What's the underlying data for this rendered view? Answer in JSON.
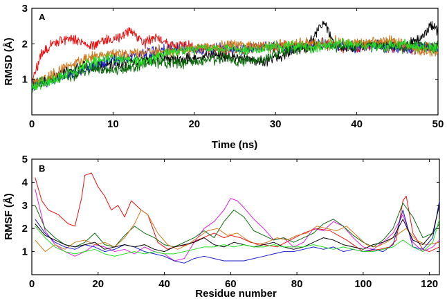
{
  "colors": {
    "red": "#ee1111",
    "black": "#000000",
    "blue": "#1a1acc",
    "dark_green": "#0a6a0a",
    "orange": "#d07a20",
    "green": "#22dd22",
    "magenta": "#e020e0",
    "dark_orange": "#d04a10"
  },
  "chart_data": [
    {
      "type": "line",
      "panel_label": "A",
      "xlabel": "Time (ns)",
      "ylabel": "RMSD (Å)",
      "xlim": [
        0,
        50
      ],
      "ylim": [
        0,
        3
      ],
      "xticks": [
        0,
        10,
        20,
        30,
        40,
        50
      ],
      "yticks": [
        1,
        2,
        3
      ],
      "series": [
        {
          "name": "red",
          "color": "#ee1111",
          "x": [
            0,
            1,
            2,
            3,
            4,
            5,
            6,
            7,
            8,
            9,
            10,
            11,
            12,
            13,
            14,
            15,
            16,
            17,
            18,
            19,
            20,
            22,
            24,
            26,
            28,
            30,
            32,
            34,
            36,
            38,
            40,
            42,
            44,
            46,
            48,
            50
          ],
          "values": [
            0.9,
            1.6,
            1.9,
            2.05,
            2.1,
            2.15,
            2.05,
            1.95,
            2.0,
            2.1,
            2.1,
            2.2,
            2.4,
            2.2,
            2.0,
            2.2,
            2.1,
            2.0,
            1.9,
            1.95,
            1.9,
            1.85,
            1.8,
            1.85,
            1.9,
            1.9,
            1.95,
            1.9,
            2.0,
            1.9,
            1.9,
            1.95,
            1.9,
            1.9,
            1.85,
            1.9
          ]
        },
        {
          "name": "black",
          "color": "#000000",
          "x": [
            0,
            2,
            4,
            6,
            8,
            10,
            12,
            14,
            16,
            18,
            20,
            22,
            24,
            26,
            28,
            30,
            32,
            34,
            35,
            36,
            37,
            38,
            40,
            42,
            44,
            46,
            48,
            49,
            50
          ],
          "values": [
            0.85,
            1.0,
            1.2,
            1.35,
            1.4,
            1.45,
            1.5,
            1.55,
            1.6,
            1.55,
            1.6,
            1.7,
            1.65,
            1.6,
            1.5,
            1.6,
            1.8,
            1.9,
            2.3,
            2.6,
            2.1,
            1.9,
            1.95,
            2.0,
            2.0,
            1.95,
            2.2,
            2.5,
            2.4
          ]
        },
        {
          "name": "blue",
          "color": "#1a1acc",
          "x": [
            0,
            2,
            4,
            6,
            8,
            10,
            12,
            14,
            16,
            18,
            20,
            22,
            24,
            26,
            28,
            30,
            32,
            34,
            36,
            38,
            40,
            42,
            44,
            46,
            48,
            50
          ],
          "values": [
            0.85,
            0.95,
            1.1,
            1.25,
            1.4,
            1.55,
            1.65,
            1.75,
            1.8,
            1.85,
            1.8,
            1.85,
            1.9,
            1.85,
            1.9,
            1.95,
            1.9,
            1.95,
            2.0,
            1.95,
            1.9,
            1.95,
            1.9,
            1.85,
            1.9,
            1.85
          ]
        },
        {
          "name": "dark_green",
          "color": "#0a6a0a",
          "x": [
            0,
            2,
            4,
            6,
            8,
            10,
            12,
            14,
            16,
            18,
            20,
            22,
            24,
            26,
            28,
            30,
            32,
            34,
            36,
            38,
            40,
            42,
            44,
            46,
            48,
            50
          ],
          "values": [
            0.75,
            1.0,
            1.05,
            1.2,
            1.3,
            1.25,
            1.35,
            1.45,
            1.5,
            1.45,
            1.5,
            1.55,
            1.6,
            1.5,
            1.55,
            1.7,
            1.85,
            1.9,
            1.95,
            1.9,
            1.95,
            2.0,
            1.95,
            1.9,
            1.95,
            1.9
          ]
        },
        {
          "name": "orange",
          "color": "#d07a20",
          "x": [
            0,
            2,
            4,
            6,
            8,
            10,
            12,
            14,
            16,
            18,
            20,
            22,
            24,
            26,
            28,
            30,
            32,
            34,
            36,
            38,
            40,
            42,
            44,
            46,
            48,
            50
          ],
          "values": [
            0.9,
            1.1,
            1.3,
            1.5,
            1.65,
            1.75,
            1.7,
            1.75,
            1.8,
            1.8,
            1.85,
            1.9,
            1.95,
            2.0,
            1.9,
            1.95,
            2.0,
            2.05,
            2.0,
            2.1,
            2.0,
            2.05,
            2.1,
            2.0,
            1.8,
            1.7
          ]
        },
        {
          "name": "green",
          "color": "#22dd22",
          "x": [
            0,
            2,
            4,
            6,
            8,
            10,
            12,
            14,
            16,
            18,
            20,
            22,
            24,
            26,
            28,
            30,
            32,
            34,
            36,
            38,
            40,
            42,
            44,
            46,
            48,
            50
          ],
          "values": [
            0.8,
            0.95,
            1.1,
            1.35,
            1.5,
            1.6,
            1.55,
            1.5,
            1.7,
            1.8,
            1.85,
            1.9,
            1.85,
            1.8,
            1.85,
            1.9,
            1.95,
            1.9,
            1.95,
            2.0,
            1.95,
            1.9,
            1.95,
            2.0,
            1.9,
            1.85
          ]
        }
      ]
    },
    {
      "type": "line",
      "panel_label": "B",
      "xlabel": "Residue number",
      "ylabel": "RMSF (Å)",
      "xlim": [
        0,
        123
      ],
      "ylim": [
        0,
        5
      ],
      "xticks": [
        0,
        20,
        40,
        60,
        80,
        100,
        120
      ],
      "yticks": [
        1,
        2,
        3,
        4,
        5
      ],
      "series": [
        {
          "name": "red",
          "color": "#ee1111",
          "x": [
            1,
            3,
            5,
            8,
            11,
            13,
            15,
            16,
            18,
            20,
            22,
            24,
            26,
            28,
            30,
            33,
            35,
            38,
            41,
            43,
            47,
            50,
            55,
            58,
            60,
            63,
            66,
            70,
            74,
            78,
            82,
            86,
            90,
            95,
            100,
            105,
            108,
            110,
            112,
            113,
            115,
            118,
            120,
            123
          ],
          "values": [
            4.2,
            3.2,
            2.8,
            2.6,
            2.2,
            2.1,
            3.3,
            4.3,
            4.4,
            3.8,
            3.4,
            2.8,
            3.0,
            2.5,
            3.2,
            2.8,
            2.6,
            1.4,
            1.1,
            1.2,
            1.3,
            1.5,
            1.8,
            1.6,
            1.7,
            1.6,
            1.4,
            1.3,
            1.2,
            1.5,
            1.8,
            2.0,
            1.9,
            1.5,
            1.0,
            1.1,
            1.2,
            1.5,
            3.2,
            3.4,
            1.8,
            1.1,
            1.0,
            1.2
          ]
        },
        {
          "name": "magenta",
          "color": "#e020e0",
          "x": [
            1,
            4,
            7,
            10,
            13,
            16,
            19,
            22,
            25,
            28,
            31,
            34,
            37,
            40,
            43,
            46,
            49,
            52,
            55,
            58,
            60,
            62,
            64,
            67,
            70,
            73,
            76,
            79,
            82,
            85,
            88,
            91,
            94,
            97,
            100,
            103,
            106,
            109,
            112,
            115,
            118,
            121,
            123
          ],
          "values": [
            3.7,
            1.9,
            1.3,
            1.0,
            0.8,
            1.0,
            1.3,
            1.2,
            1.0,
            1.1,
            0.9,
            1.2,
            1.0,
            0.9,
            0.6,
            0.7,
            1.4,
            2.0,
            2.3,
            2.8,
            3.3,
            3.2,
            2.9,
            2.4,
            2.0,
            1.5,
            1.6,
            1.2,
            1.4,
            2.0,
            1.9,
            2.3,
            2.1,
            1.6,
            1.2,
            1.1,
            1.4,
            1.8,
            2.6,
            1.4,
            1.0,
            1.2,
            1.5
          ]
        },
        {
          "name": "dark_green",
          "color": "#0a6a0a",
          "x": [
            1,
            4,
            7,
            10,
            13,
            16,
            19,
            22,
            25,
            28,
            31,
            34,
            37,
            40,
            43,
            46,
            49,
            52,
            55,
            58,
            61,
            64,
            67,
            70,
            73,
            76,
            79,
            82,
            85,
            88,
            91,
            94,
            97,
            100,
            103,
            106,
            109,
            112,
            115,
            118,
            121,
            123
          ],
          "values": [
            3.0,
            2.0,
            1.6,
            1.3,
            1.2,
            1.4,
            1.8,
            1.3,
            1.2,
            1.7,
            2.1,
            1.8,
            1.6,
            1.3,
            1.2,
            1.4,
            1.6,
            1.9,
            1.6,
            2.3,
            2.8,
            2.5,
            1.9,
            1.7,
            1.5,
            1.6,
            1.4,
            1.6,
            1.8,
            2.2,
            2.4,
            2.1,
            1.7,
            1.4,
            1.2,
            1.5,
            2.0,
            3.1,
            2.5,
            1.6,
            1.8,
            2.2
          ]
        },
        {
          "name": "orange",
          "color": "#d07a20",
          "x": [
            1,
            4,
            7,
            10,
            13,
            16,
            19,
            22,
            25,
            28,
            31,
            33,
            35,
            38,
            41,
            44,
            47,
            50,
            53,
            56,
            59,
            62,
            65,
            68,
            71,
            74,
            77,
            80,
            83,
            86,
            89,
            92,
            95,
            98,
            101,
            104,
            107,
            110,
            113,
            116,
            119,
            123
          ],
          "values": [
            1.5,
            1.0,
            1.3,
            1.1,
            1.4,
            1.5,
            1.3,
            1.4,
            1.2,
            1.6,
            2.2,
            2.8,
            2.6,
            1.8,
            1.3,
            1.1,
            1.3,
            1.6,
            1.9,
            2.0,
            1.7,
            1.8,
            1.5,
            1.3,
            1.4,
            1.6,
            1.5,
            1.7,
            1.8,
            2.1,
            2.0,
            1.9,
            2.1,
            1.7,
            1.3,
            1.2,
            1.4,
            1.7,
            2.0,
            1.5,
            1.3,
            1.4
          ]
        },
        {
          "name": "blue",
          "color": "#1a1acc",
          "x": [
            1,
            4,
            7,
            10,
            13,
            16,
            19,
            22,
            25,
            28,
            31,
            34,
            37,
            40,
            43,
            46,
            49,
            52,
            55,
            58,
            61,
            64,
            67,
            70,
            73,
            76,
            79,
            82,
            85,
            88,
            91,
            94,
            97,
            100,
            103,
            106,
            109,
            112,
            115,
            118,
            121,
            123
          ],
          "values": [
            2.4,
            1.8,
            1.4,
            1.2,
            1.1,
            1.3,
            1.2,
            1.0,
            1.1,
            1.3,
            1.2,
            1.0,
            0.9,
            0.8,
            0.6,
            0.5,
            0.7,
            0.8,
            0.7,
            0.6,
            0.6,
            0.6,
            0.7,
            0.8,
            0.9,
            1.0,
            1.0,
            1.1,
            1.2,
            1.1,
            1.2,
            1.0,
            1.1,
            1.0,
            1.1,
            1.0,
            1.3,
            2.8,
            1.2,
            1.1,
            1.6,
            3.2
          ]
        },
        {
          "name": "black",
          "color": "#000000",
          "x": [
            1,
            4,
            7,
            10,
            13,
            16,
            19,
            22,
            25,
            28,
            31,
            34,
            37,
            40,
            43,
            46,
            49,
            52,
            55,
            58,
            61,
            64,
            67,
            70,
            73,
            76,
            79,
            82,
            85,
            88,
            91,
            94,
            97,
            100,
            103,
            106,
            109,
            112,
            115,
            118,
            121,
            123
          ],
          "values": [
            2.2,
            1.7,
            1.5,
            1.3,
            1.2,
            1.3,
            1.4,
            1.1,
            1.2,
            1.3,
            1.2,
            1.3,
            1.1,
            1.0,
            1.2,
            1.3,
            1.4,
            1.6,
            1.3,
            1.2,
            1.4,
            1.3,
            1.2,
            1.3,
            1.4,
            1.2,
            1.1,
            1.2,
            1.4,
            1.6,
            1.5,
            1.3,
            1.2,
            1.1,
            1.3,
            1.4,
            1.6,
            2.4,
            1.5,
            1.3,
            1.8,
            3.0
          ]
        },
        {
          "name": "green",
          "color": "#22dd22",
          "x": [
            1,
            4,
            7,
            10,
            13,
            16,
            19,
            22,
            25,
            28,
            31,
            34,
            37,
            40,
            43,
            46,
            49,
            52,
            55,
            58,
            61,
            64,
            67,
            70,
            73,
            76,
            79,
            82,
            85,
            88,
            91,
            94,
            97,
            100,
            103,
            106,
            109,
            112,
            115,
            118,
            121,
            123
          ],
          "values": [
            2.1,
            1.6,
            1.2,
            1.0,
            0.9,
            1.0,
            1.1,
            0.9,
            0.8,
            0.9,
            1.0,
            0.9,
            1.0,
            0.9,
            0.9,
            1.0,
            1.1,
            1.2,
            1.2,
            1.3,
            1.2,
            1.3,
            1.2,
            1.2,
            1.3,
            1.2,
            1.2,
            1.2,
            1.3,
            1.2,
            1.1,
            1.2,
            1.1,
            1.0,
            1.0,
            1.1,
            1.2,
            1.5,
            1.2,
            1.0,
            1.4,
            2.4
          ]
        }
      ]
    }
  ]
}
